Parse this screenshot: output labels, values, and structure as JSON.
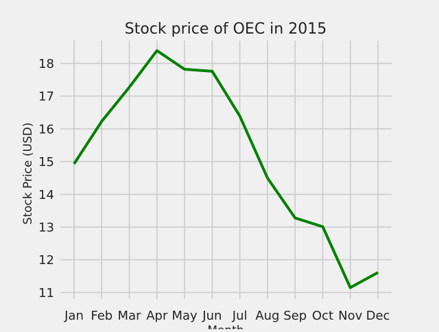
{
  "chart_data": {
    "type": "line",
    "title": "Stock price of OEC in 2015",
    "xlabel": "Month",
    "ylabel": "Stock Price (USD)",
    "categories": [
      "Jan",
      "Feb",
      "Mar",
      "Apr",
      "May",
      "Jun",
      "Jul",
      "Aug",
      "Sep",
      "Oct",
      "Nov",
      "Dec"
    ],
    "series": [
      {
        "values": [
          14.93,
          16.23,
          17.27,
          18.39,
          17.82,
          17.76,
          16.39,
          14.5,
          13.28,
          13.01,
          11.15,
          11.61
        ]
      }
    ],
    "yticks": [
      11,
      12,
      13,
      14,
      15,
      16,
      17,
      18
    ],
    "ylim": [
      10.8,
      18.7
    ],
    "grid": true,
    "legend": false,
    "line_color": "#008000",
    "grid_color": "#cbcbcb",
    "background_color": "#f0f0f0"
  }
}
